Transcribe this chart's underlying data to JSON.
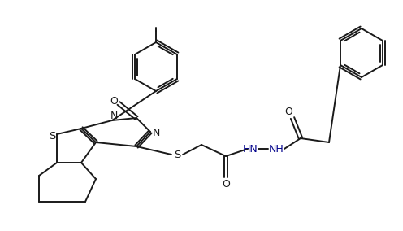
{
  "bg_color": "#ffffff",
  "line_color": "#1a1a1a",
  "lw": 1.4,
  "fig_width": 4.96,
  "fig_height": 2.84,
  "dpi": 100,
  "label_N": "N",
  "label_S": "S",
  "label_O": "O",
  "label_HN_NH": "HN",
  "label_NH": "NH",
  "blue_color": "#00008b"
}
